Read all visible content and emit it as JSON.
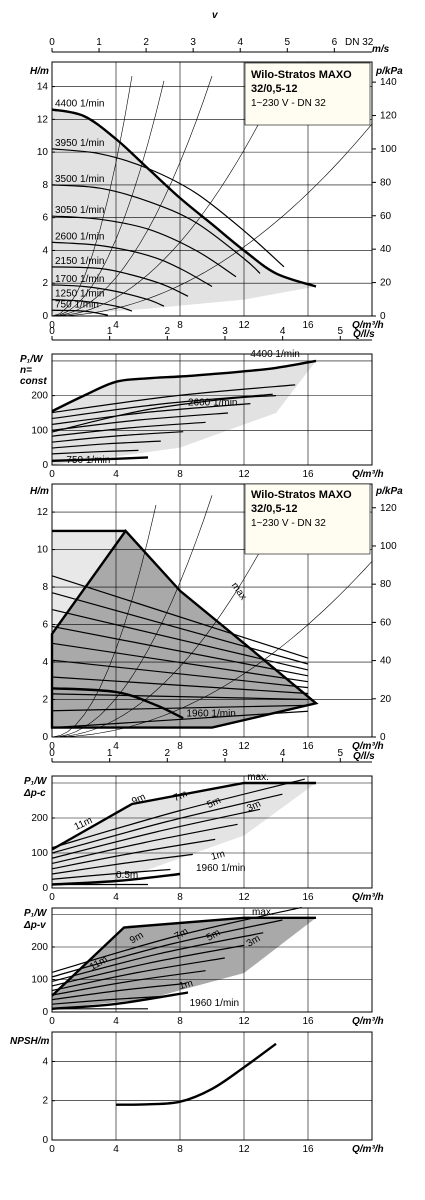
{
  "top_axis": {
    "unit_label": "v",
    "ticks": [
      "0",
      "1",
      "2",
      "3",
      "4",
      "5",
      "6"
    ],
    "dn_label": "DN 32",
    "unit": "m/s"
  },
  "infobox": {
    "title1": "Wilo-Stratos MAXO",
    "title2": "32/0,5-12",
    "subtitle": "1~230 V - DN 32"
  },
  "chart_data": [
    {
      "id": "head_speed",
      "type": "line",
      "ylabel": "H/m",
      "y2label": "p/kPa",
      "xlabel": "Q/m³/h",
      "xlim": [
        0,
        20
      ],
      "ylim": [
        0,
        15
      ],
      "x_ticks": [
        "0",
        "4",
        "8",
        "12",
        "16"
      ],
      "y_ticks": [
        "0",
        "2",
        "4",
        "6",
        "8",
        "10",
        "12",
        "14"
      ],
      "y2_ticks": [
        "0",
        "20",
        "40",
        "60",
        "80",
        "100",
        "120",
        "140"
      ],
      "grid": true,
      "series": [
        {
          "name": "4400 1/min",
          "x": [
            0,
            2,
            4,
            6,
            8,
            10,
            12,
            14,
            16.5
          ],
          "y": [
            12.6,
            12.2,
            10.8,
            9.0,
            7.2,
            5.6,
            4.0,
            2.6,
            1.8
          ]
        },
        {
          "name": "3950 1/min",
          "x": [
            0,
            3,
            6,
            9,
            12,
            14.5
          ],
          "y": [
            10.2,
            9.9,
            9.0,
            7.5,
            5.2,
            3.0
          ]
        },
        {
          "name": "3500 1/min",
          "x": [
            0,
            3,
            6,
            9,
            12,
            13
          ],
          "y": [
            8.0,
            7.8,
            7.0,
            5.7,
            3.5,
            2.6
          ]
        },
        {
          "name": "3050 1/min",
          "x": [
            0,
            3,
            6,
            9,
            11.5
          ],
          "y": [
            6.1,
            5.9,
            5.3,
            4.0,
            2.4
          ]
        },
        {
          "name": "2600 1/min",
          "x": [
            0,
            3,
            6,
            8,
            10
          ],
          "y": [
            4.5,
            4.3,
            3.7,
            2.9,
            1.8
          ]
        },
        {
          "name": "2150 1/min",
          "x": [
            0,
            3,
            5,
            7,
            8.5
          ],
          "y": [
            3.0,
            2.9,
            2.5,
            1.9,
            1.2
          ]
        },
        {
          "name": "1700 1/min",
          "x": [
            0,
            2,
            4,
            6,
            7
          ],
          "y": [
            1.9,
            1.8,
            1.5,
            1.0,
            0.6
          ]
        },
        {
          "name": "1250 1/min",
          "x": [
            0,
            2,
            4,
            5
          ],
          "y": [
            1.0,
            0.9,
            0.6,
            0.3
          ]
        },
        {
          "name": "750 1/min",
          "x": [
            0,
            2,
            3.5
          ],
          "y": [
            0.35,
            0.3,
            0.05
          ]
        }
      ]
    },
    {
      "id": "power_speed",
      "type": "line",
      "ylabel": "P₁/W",
      "ylabel2": "n=",
      "ylabel3": "const",
      "x2label": "Q/l/s",
      "xlabel": "Q/m³/h",
      "xlim": [
        0,
        20
      ],
      "ylim": [
        0,
        300
      ],
      "x_ticks": [
        "0",
        "4",
        "8",
        "12",
        "16"
      ],
      "x2_ticks": [
        "0",
        "1",
        "2",
        "3",
        "4",
        "5"
      ],
      "y_ticks": [
        "0",
        "100",
        "200"
      ],
      "series": [
        {
          "name": "4400 1/min",
          "x": [
            0,
            2,
            4,
            6,
            8,
            10,
            12,
            14,
            16.5
          ],
          "y": [
            155,
            200,
            240,
            250,
            255,
            262,
            270,
            280,
            300
          ]
        },
        {
          "name": "2600 1/min",
          "x": [
            0,
            3,
            6,
            9,
            12,
            14
          ],
          "y": [
            95,
            130,
            160,
            180,
            195,
            200
          ]
        },
        {
          "name": "750 1/min",
          "x": [
            0,
            2,
            4,
            6
          ],
          "y": [
            12,
            15,
            18,
            22
          ]
        }
      ]
    },
    {
      "id": "head_dpv",
      "type": "line",
      "ylabel": "H/m",
      "y2label": "p/kPa",
      "xlabel": "Q/m³/h",
      "xlim": [
        0,
        20
      ],
      "ylim": [
        0,
        13
      ],
      "x_ticks": [
        "0",
        "4",
        "8",
        "12",
        "16"
      ],
      "y_ticks": [
        "0",
        "2",
        "4",
        "6",
        "8",
        "10",
        "12"
      ],
      "y2_ticks": [
        "0",
        "20",
        "40",
        "60",
        "80",
        "100",
        "120"
      ],
      "annotations": [
        "max",
        "1960 1/min"
      ]
    },
    {
      "id": "power_dpc",
      "type": "line",
      "ylabel": "P₁/W",
      "ylabel2": "Δp-c",
      "x2label": "Q/l/s",
      "xlabel": "Q/m³/h",
      "xlim": [
        0,
        20
      ],
      "ylim": [
        0,
        300
      ],
      "x_ticks": [
        "0",
        "4",
        "8",
        "12",
        "16"
      ],
      "x2_ticks": [
        "0",
        "1",
        "2",
        "3",
        "4",
        "5"
      ],
      "y_ticks": [
        "0",
        "100",
        "200"
      ],
      "annotations": [
        "11m",
        "9m",
        "7m",
        "5m",
        "3m",
        "1m",
        "0.5m",
        "1960 1/min",
        "max."
      ]
    },
    {
      "id": "power_dpv",
      "type": "line",
      "ylabel": "P₁/W",
      "ylabel2": "Δp-v",
      "xlabel": "Q/m³/h",
      "xlim": [
        0,
        20
      ],
      "ylim": [
        0,
        300
      ],
      "x_ticks": [
        "0",
        "4",
        "8",
        "12",
        "16"
      ],
      "y_ticks": [
        "0",
        "100",
        "200"
      ],
      "annotations": [
        "11m",
        "9m",
        "7m",
        "5m",
        "3m",
        "1m",
        "1960 1/min",
        "max."
      ]
    },
    {
      "id": "npsh",
      "type": "line",
      "ylabel": "NPSH/m",
      "xlabel": "Q/m³/h",
      "xlim": [
        0,
        20
      ],
      "ylim": [
        0,
        5.5
      ],
      "x_ticks": [
        "0",
        "4",
        "8",
        "12",
        "16"
      ],
      "y_ticks": [
        "0",
        "2",
        "4"
      ],
      "series": [
        {
          "name": "",
          "x": [
            4,
            6,
            8,
            10,
            12,
            14
          ],
          "y": [
            1.8,
            1.82,
            1.95,
            2.6,
            3.7,
            4.9
          ]
        }
      ]
    }
  ]
}
